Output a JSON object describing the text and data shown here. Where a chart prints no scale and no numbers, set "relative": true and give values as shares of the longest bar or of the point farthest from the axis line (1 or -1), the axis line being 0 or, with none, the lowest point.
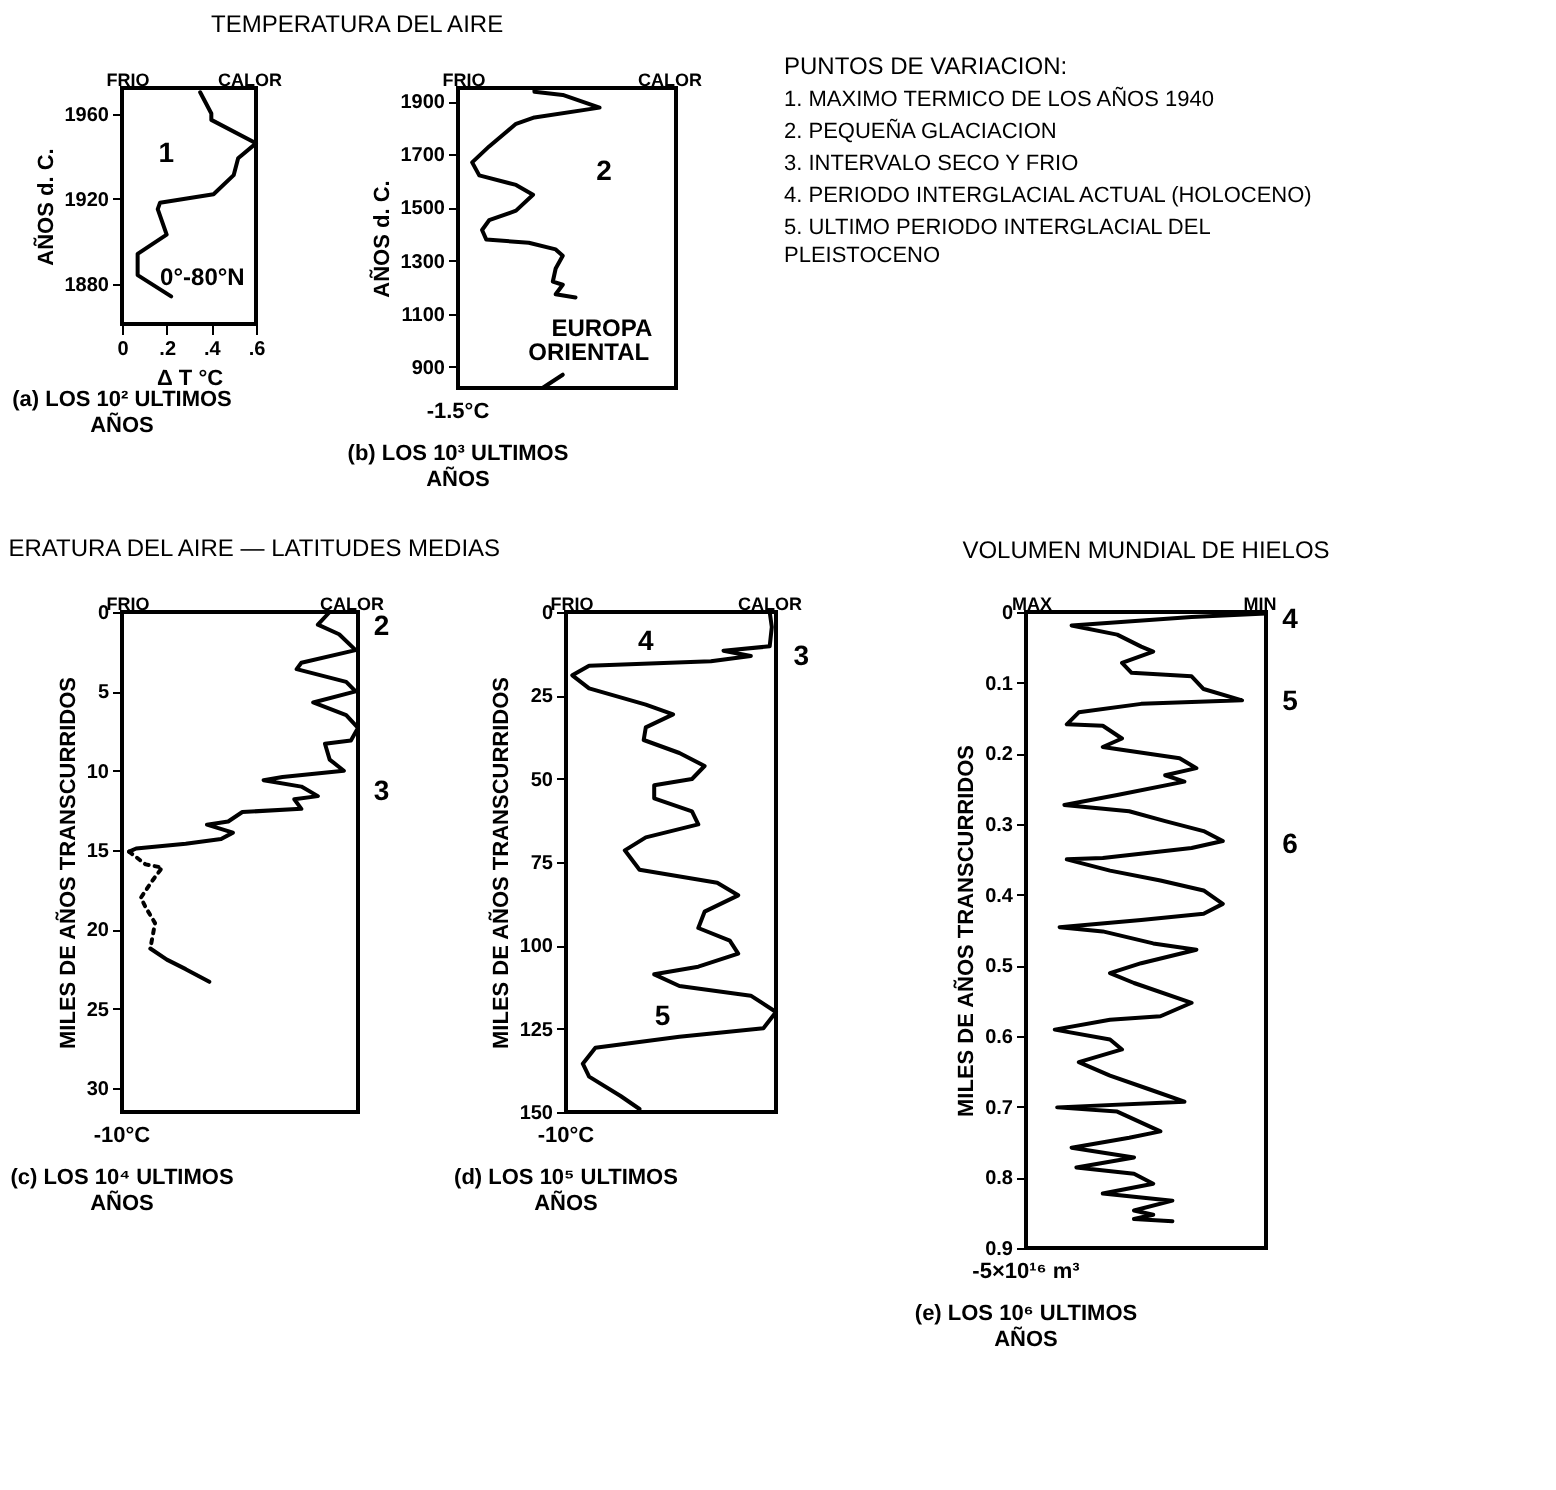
{
  "chart_data": [
    {
      "type": "line",
      "orientation": "horizontal",
      "title": "TEMPERATURA DEL AIRE",
      "ylabel": "AÑOS d. C.",
      "xlabel": "Δ T °C",
      "x": [
        1874,
        1884,
        1894,
        1903,
        1915,
        1918,
        1922,
        1931,
        1939,
        1946,
        1957,
        1960,
        1970
      ],
      "values": [
        0.22,
        0.07,
        0.07,
        0.2,
        0.16,
        0.17,
        0.41,
        0.5,
        0.52,
        0.6,
        0.4,
        0.4,
        0.35
      ],
      "color": "#000000",
      "xlim": [
        0,
        0.6
      ],
      "xticks": [
        0,
        {
          "value": 0.2,
          "label": ".2"
        },
        {
          "value": 0.4,
          "label": ".4"
        },
        {
          "value": 0.6,
          "label": ".6"
        }
      ],
      "ylim": [
        1861,
        1972
      ],
      "yticks": [
        1880,
        1920,
        1960
      ],
      "annotations": [
        "FRIO",
        "CALOR",
        "(a) LOS 10² ULTIMOS AÑOS",
        "1",
        "0°-80°N"
      ]
    },
    {
      "type": "line",
      "orientation": "horizontal",
      "relative": true,
      "ylabel": "AÑOS d. C.",
      "tick_labels": "y",
      "x": [
        821,
        870,
        1000,
        1161,
        1173,
        1209,
        1221,
        1270,
        1318,
        1342,
        1367,
        1379,
        1415,
        1452,
        1488,
        1548,
        1585,
        1621,
        1670,
        1730,
        1815,
        1839,
        1876,
        1924,
        1936,
        1948
      ],
      "values": [
        0.6,
        0.74,
        null,
        0.83,
        0.69,
        0.74,
        0.67,
        0.69,
        0.74,
        0.69,
        0.5,
        0.2,
        0.17,
        0.22,
        0.41,
        0.53,
        0.41,
        0.15,
        0.1,
        0.22,
        0.41,
        0.54,
        1,
        0.74,
        0.54,
        0.54
      ],
      "color": "#000000",
      "ylim": [
        820,
        1950
      ],
      "yticks": [
        900,
        1100,
        1300,
        1500,
        1700,
        1900
      ],
      "annotations": [
        "FRIO",
        "CALOR",
        "-1.5°C",
        "(b) LOS 10³ ULTIMOS AÑOS",
        "2",
        "EUROPA",
        "ORIENTAL"
      ]
    },
    {
      "type": "other",
      "title": "PUNTOS DE VARIACION:",
      "annotations": [
        "1. MAXIMO TERMICO DE LOS AÑOS 1940",
        "2. PEQUEÑA GLACIACION",
        "3. INTERVALO SECO Y FRIO",
        "4. PERIODO INTERGLACIAL ACTUAL (HOLOCENO)",
        "5. ULTIMO PERIODO INTERGLACIAL DEL PLEISTOCENO"
      ]
    },
    {
      "type": "line",
      "orientation": "horizontal",
      "relative": true,
      "title": "ERATURA DEL AIRE — LATITUDES MEDIAS",
      "ylabel": "MILES DE AÑOS TRANSCURRIDOS",
      "tick_labels": "y",
      "series": [
        {
          "color": "#000000",
          "x": [
            0,
            0.8,
            1.4,
            2.4,
            3.2,
            3.6,
            4.4,
            5.0,
            5.7,
            6.5,
            7.3,
            8.1,
            8.3,
            9.3,
            10.0,
            10.4,
            10.6,
            11.0,
            11.6,
            11.8,
            12.4,
            12.6,
            13.2,
            13.4,
            13.9,
            14.3,
            14.6,
            14.9,
            15.1,
            18,
            21.2,
            21.9,
            22.5,
            23.3
          ],
          "values": [
            0.88,
            0.83,
            0.92,
            0.99,
            0.76,
            0.74,
            0.95,
            0.99,
            0.81,
            0.95,
            1,
            0.97,
            0.86,
            0.88,
            0.94,
            0.68,
            0.6,
            0.76,
            0.83,
            0.73,
            0.76,
            0.51,
            0.45,
            0.36,
            0.47,
            0.42,
            0.27,
            0.06,
            0.03,
            null,
            0.12,
            0.19,
            0.27,
            0.37
          ]
        },
        {
          "color": "#000000",
          "line_style": "dotted",
          "x": [
            15.1,
            15.9,
            16.1,
            16.9,
            18.0,
            18.6,
            19.6,
            20.4,
            21.2
          ],
          "values": [
            0.03,
            0.1,
            0.17,
            0.13,
            0.08,
            0.1,
            0.14,
            0.13,
            0.12
          ]
        }
      ],
      "ylim": [
        31.5,
        0
      ],
      "yticks": [
        0,
        5,
        10,
        15,
        20,
        25,
        30
      ],
      "annotations": [
        "FRIO",
        "CALOR",
        "-10°C",
        "(c) LOS 10⁴ ULTIMOS AÑOS",
        "2",
        "3"
      ]
    },
    {
      "type": "line",
      "orientation": "horizontal",
      "relative": true,
      "ylabel": "MILES DE AÑOS TRANSCURRIDOS",
      "tick_labels": "y",
      "x": [
        0,
        4.5,
        10.3,
        11.6,
        13.2,
        14.8,
        16.1,
        19,
        22.9,
        27.8,
        30.7,
        34.6,
        38.4,
        42.3,
        46.2,
        50.1,
        52,
        55.9,
        59.8,
        63.7,
        67.6,
        71.5,
        77.3,
        81.2,
        85,
        89.9,
        94.8,
        98.6,
        102.5,
        106.4,
        108.7,
        112.2,
        115.1,
        120,
        124.9,
        127.4,
        130.7,
        135.5,
        139.4,
        145.2,
        149.1
      ],
      "values": [
        0.97,
        0.98,
        0.97,
        0.75,
        0.88,
        0.69,
        0.11,
        0.03,
        0.11,
        0.38,
        0.51,
        0.38,
        0.37,
        0.54,
        0.66,
        0.6,
        0.42,
        0.42,
        0.6,
        0.63,
        0.38,
        0.28,
        0.35,
        0.72,
        0.82,
        0.66,
        0.63,
        0.78,
        0.82,
        0.63,
        0.42,
        0.54,
        0.88,
        1,
        0.94,
        0.54,
        0.14,
        0.08,
        0.11,
        0.26,
        0.35
      ],
      "color": "#000000",
      "ylim": [
        150,
        0
      ],
      "yticks": [
        0,
        25,
        50,
        75,
        100,
        125,
        150
      ],
      "annotations": [
        "FRIO",
        "CALOR",
        "-10°C",
        "(d) LOS 10⁵ ULTIMOS AÑOS",
        "4",
        "3",
        "5"
      ]
    },
    {
      "type": "line",
      "orientation": "horizontal",
      "relative": true,
      "title": "VOLUMEN MUNDIAL DE HIELOS",
      "ylabel": "MILES DE AÑOS TRANSCURRIDOS",
      "tick_labels": "y",
      "x": [
        0.002,
        0.007,
        0.019,
        0.032,
        0.049,
        0.056,
        0.072,
        0.086,
        0.091,
        0.109,
        0.125,
        0.13,
        0.142,
        0.159,
        0.161,
        0.179,
        0.191,
        0.207,
        0.221,
        0.231,
        0.24,
        0.259,
        0.273,
        0.282,
        0.296,
        0.31,
        0.324,
        0.334,
        0.348,
        0.35,
        0.366,
        0.38,
        0.394,
        0.413,
        0.427,
        0.436,
        0.446,
        0.452,
        0.469,
        0.478,
        0.497,
        0.511,
        0.525,
        0.553,
        0.572,
        0.577,
        0.591,
        0.605,
        0.619,
        0.637,
        0.656,
        0.675,
        0.693,
        0.701,
        0.707,
        0.735,
        0.744,
        0.758,
        0.772,
        0.786,
        0.795,
        0.809,
        0.823,
        0.833,
        0.847,
        0.853,
        0.859,
        0.862
      ],
      "values": [
        1,
        0.69,
        0.19,
        0.38,
        0.48,
        0.53,
        0.4,
        0.44,
        0.69,
        0.74,
        0.9,
        0.48,
        0.22,
        0.17,
        0.32,
        0.4,
        0.32,
        0.64,
        0.71,
        0.58,
        0.66,
        0.38,
        0.16,
        0.43,
        0.58,
        0.74,
        0.82,
        0.69,
        0.32,
        0.17,
        0.35,
        0.56,
        0.74,
        0.82,
        0.74,
        0.48,
        0.14,
        0.32,
        0.53,
        0.71,
        0.48,
        0.35,
        0.45,
        0.69,
        0.56,
        0.35,
        0.12,
        0.35,
        0.4,
        0.22,
        0.35,
        0.51,
        0.66,
        0.13,
        0.38,
        0.56,
        0.43,
        0.19,
        0.45,
        0.21,
        0.45,
        0.53,
        0.32,
        0.61,
        0.45,
        0.53,
        0.45,
        0.61
      ],
      "color": "#000000",
      "ylim": [
        0.9,
        0
      ],
      "yticks": [
        0,
        0.1,
        0.2,
        0.3,
        0.4,
        0.5,
        0.6,
        0.7,
        0.8,
        0.9
      ],
      "annotations": [
        "MAX",
        "MIN",
        "-5×10¹⁶ m³",
        "(e) LOS 10⁶ ULTIMOS AÑOS",
        "4",
        "5",
        "6"
      ]
    }
  ]
}
